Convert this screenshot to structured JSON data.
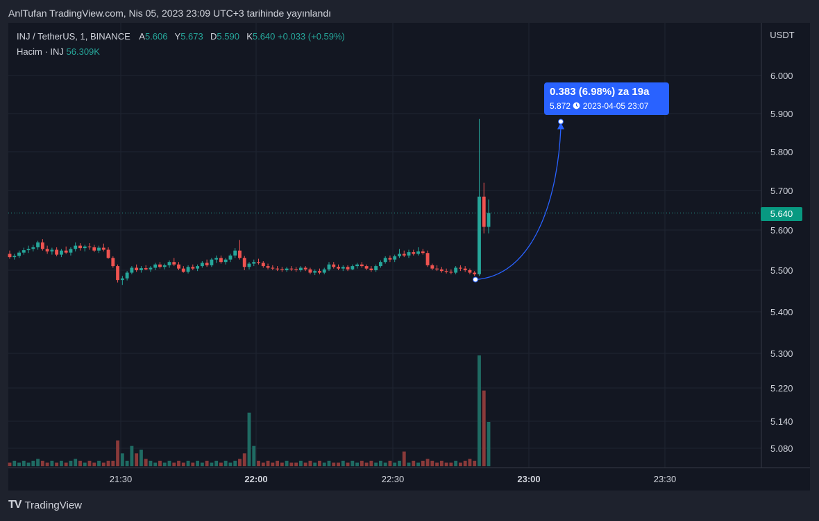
{
  "header": {
    "text": "AnlTufan TradingView.com, Nis 05, 2023 23:09 UTC+3 tarihinde yayınlandı"
  },
  "legend": {
    "symbol": "INJ / TetherUS, 1, BINANCE",
    "open_label": "A",
    "open": "5.606",
    "high_label": "Y",
    "high": "5.673",
    "low_label": "D",
    "low": "5.590",
    "close_label": "K",
    "close": "5.640",
    "change": "+0.033 (+0.59%)",
    "volume_label": "Hacim · INJ",
    "volume": "56.309K"
  },
  "callout": {
    "main": "0.383 (6.98%) za 19a",
    "price": "5.872",
    "datetime": "2023-04-05  23:07",
    "icon": "clock-icon"
  },
  "price_tag": "5.640",
  "brand": {
    "name": "TradingView",
    "logo": "TV"
  },
  "colors": {
    "up": "#26a69a",
    "down": "#ef5350",
    "accent": "#2962ff",
    "background": "#131722"
  },
  "chart_data": {
    "type": "candlestick",
    "currency_label": "USDT",
    "y_ticks": [
      "6.000",
      "5.900",
      "5.800",
      "5.700",
      "5.600",
      "5.500",
      "5.400",
      "5.300",
      "5.220",
      "5.140",
      "5.080"
    ],
    "x_ticks": [
      "21:30",
      "22:00",
      "22:30",
      "23:00",
      "23:30"
    ],
    "last_price": 5.64,
    "measure": {
      "from_price": 5.489,
      "to_price": 5.872,
      "change": 0.383,
      "percent": 6.98
    },
    "candles": [
      {
        "o": 5.54,
        "h": 5.548,
        "l": 5.528,
        "c": 5.532
      },
      {
        "o": 5.532,
        "h": 5.54,
        "l": 5.526,
        "c": 5.535
      },
      {
        "o": 5.535,
        "h": 5.548,
        "l": 5.53,
        "c": 5.543
      },
      {
        "o": 5.543,
        "h": 5.555,
        "l": 5.538,
        "c": 5.549
      },
      {
        "o": 5.549,
        "h": 5.56,
        "l": 5.542,
        "c": 5.552
      },
      {
        "o": 5.552,
        "h": 5.562,
        "l": 5.546,
        "c": 5.556
      },
      {
        "o": 5.556,
        "h": 5.572,
        "l": 5.55,
        "c": 5.568
      },
      {
        "o": 5.568,
        "h": 5.576,
        "l": 5.548,
        "c": 5.552
      },
      {
        "o": 5.552,
        "h": 5.56,
        "l": 5.54,
        "c": 5.546
      },
      {
        "o": 5.546,
        "h": 5.555,
        "l": 5.538,
        "c": 5.55
      },
      {
        "o": 5.55,
        "h": 5.556,
        "l": 5.534,
        "c": 5.538
      },
      {
        "o": 5.538,
        "h": 5.552,
        "l": 5.532,
        "c": 5.548
      },
      {
        "o": 5.548,
        "h": 5.558,
        "l": 5.54,
        "c": 5.543
      },
      {
        "o": 5.543,
        "h": 5.556,
        "l": 5.536,
        "c": 5.552
      },
      {
        "o": 5.552,
        "h": 5.568,
        "l": 5.546,
        "c": 5.56
      },
      {
        "o": 5.56,
        "h": 5.566,
        "l": 5.548,
        "c": 5.554
      },
      {
        "o": 5.554,
        "h": 5.562,
        "l": 5.546,
        "c": 5.558
      },
      {
        "o": 5.558,
        "h": 5.566,
        "l": 5.55,
        "c": 5.556
      },
      {
        "o": 5.556,
        "h": 5.562,
        "l": 5.544,
        "c": 5.548
      },
      {
        "o": 5.548,
        "h": 5.56,
        "l": 5.542,
        "c": 5.555
      },
      {
        "o": 5.555,
        "h": 5.565,
        "l": 5.546,
        "c": 5.55
      },
      {
        "o": 5.55,
        "h": 5.556,
        "l": 5.528,
        "c": 5.53
      },
      {
        "o": 5.53,
        "h": 5.534,
        "l": 5.506,
        "c": 5.51
      },
      {
        "o": 5.51,
        "h": 5.514,
        "l": 5.47,
        "c": 5.476
      },
      {
        "o": 5.476,
        "h": 5.486,
        "l": 5.464,
        "c": 5.48
      },
      {
        "o": 5.48,
        "h": 5.498,
        "l": 5.475,
        "c": 5.494
      },
      {
        "o": 5.494,
        "h": 5.51,
        "l": 5.49,
        "c": 5.506
      },
      {
        "o": 5.506,
        "h": 5.514,
        "l": 5.496,
        "c": 5.5
      },
      {
        "o": 5.5,
        "h": 5.51,
        "l": 5.494,
        "c": 5.505
      },
      {
        "o": 5.505,
        "h": 5.512,
        "l": 5.5,
        "c": 5.502
      },
      {
        "o": 5.502,
        "h": 5.51,
        "l": 5.496,
        "c": 5.506
      },
      {
        "o": 5.506,
        "h": 5.518,
        "l": 5.5,
        "c": 5.514
      },
      {
        "o": 5.514,
        "h": 5.52,
        "l": 5.504,
        "c": 5.508
      },
      {
        "o": 5.508,
        "h": 5.516,
        "l": 5.502,
        "c": 5.512
      },
      {
        "o": 5.512,
        "h": 5.524,
        "l": 5.506,
        "c": 5.52
      },
      {
        "o": 5.52,
        "h": 5.53,
        "l": 5.51,
        "c": 5.514
      },
      {
        "o": 5.514,
        "h": 5.52,
        "l": 5.5,
        "c": 5.504
      },
      {
        "o": 5.504,
        "h": 5.51,
        "l": 5.494,
        "c": 5.496
      },
      {
        "o": 5.496,
        "h": 5.512,
        "l": 5.492,
        "c": 5.508
      },
      {
        "o": 5.508,
        "h": 5.514,
        "l": 5.5,
        "c": 5.504
      },
      {
        "o": 5.504,
        "h": 5.514,
        "l": 5.498,
        "c": 5.51
      },
      {
        "o": 5.51,
        "h": 5.522,
        "l": 5.506,
        "c": 5.518
      },
      {
        "o": 5.518,
        "h": 5.526,
        "l": 5.508,
        "c": 5.512
      },
      {
        "o": 5.512,
        "h": 5.53,
        "l": 5.508,
        "c": 5.526
      },
      {
        "o": 5.526,
        "h": 5.536,
        "l": 5.518,
        "c": 5.53
      },
      {
        "o": 5.53,
        "h": 5.536,
        "l": 5.516,
        "c": 5.52
      },
      {
        "o": 5.52,
        "h": 5.53,
        "l": 5.514,
        "c": 5.526
      },
      {
        "o": 5.526,
        "h": 5.54,
        "l": 5.52,
        "c": 5.536
      },
      {
        "o": 5.536,
        "h": 5.554,
        "l": 5.53,
        "c": 5.548
      },
      {
        "o": 5.548,
        "h": 5.574,
        "l": 5.526,
        "c": 5.53
      },
      {
        "o": 5.53,
        "h": 5.535,
        "l": 5.5,
        "c": 5.508
      },
      {
        "o": 5.508,
        "h": 5.52,
        "l": 5.502,
        "c": 5.516
      },
      {
        "o": 5.516,
        "h": 5.526,
        "l": 5.51,
        "c": 5.52
      },
      {
        "o": 5.52,
        "h": 5.528,
        "l": 5.514,
        "c": 5.518
      },
      {
        "o": 5.518,
        "h": 5.522,
        "l": 5.506,
        "c": 5.51
      },
      {
        "o": 5.51,
        "h": 5.516,
        "l": 5.502,
        "c": 5.506
      },
      {
        "o": 5.506,
        "h": 5.512,
        "l": 5.5,
        "c": 5.504
      },
      {
        "o": 5.504,
        "h": 5.51,
        "l": 5.498,
        "c": 5.502
      },
      {
        "o": 5.502,
        "h": 5.508,
        "l": 5.496,
        "c": 5.5
      },
      {
        "o": 5.5,
        "h": 5.508,
        "l": 5.496,
        "c": 5.504
      },
      {
        "o": 5.504,
        "h": 5.51,
        "l": 5.498,
        "c": 5.502
      },
      {
        "o": 5.502,
        "h": 5.508,
        "l": 5.496,
        "c": 5.5
      },
      {
        "o": 5.5,
        "h": 5.51,
        "l": 5.496,
        "c": 5.506
      },
      {
        "o": 5.506,
        "h": 5.51,
        "l": 5.498,
        "c": 5.502
      },
      {
        "o": 5.502,
        "h": 5.506,
        "l": 5.49,
        "c": 5.494
      },
      {
        "o": 5.494,
        "h": 5.502,
        "l": 5.488,
        "c": 5.498
      },
      {
        "o": 5.498,
        "h": 5.504,
        "l": 5.49,
        "c": 5.494
      },
      {
        "o": 5.494,
        "h": 5.506,
        "l": 5.49,
        "c": 5.502
      },
      {
        "o": 5.502,
        "h": 5.52,
        "l": 5.498,
        "c": 5.514
      },
      {
        "o": 5.514,
        "h": 5.52,
        "l": 5.504,
        "c": 5.508
      },
      {
        "o": 5.508,
        "h": 5.514,
        "l": 5.5,
        "c": 5.504
      },
      {
        "o": 5.504,
        "h": 5.512,
        "l": 5.498,
        "c": 5.508
      },
      {
        "o": 5.508,
        "h": 5.512,
        "l": 5.498,
        "c": 5.502
      },
      {
        "o": 5.502,
        "h": 5.514,
        "l": 5.5,
        "c": 5.51
      },
      {
        "o": 5.51,
        "h": 5.518,
        "l": 5.504,
        "c": 5.514
      },
      {
        "o": 5.514,
        "h": 5.52,
        "l": 5.506,
        "c": 5.51
      },
      {
        "o": 5.51,
        "h": 5.514,
        "l": 5.5,
        "c": 5.504
      },
      {
        "o": 5.504,
        "h": 5.51,
        "l": 5.496,
        "c": 5.5
      },
      {
        "o": 5.5,
        "h": 5.514,
        "l": 5.496,
        "c": 5.51
      },
      {
        "o": 5.51,
        "h": 5.524,
        "l": 5.506,
        "c": 5.52
      },
      {
        "o": 5.52,
        "h": 5.534,
        "l": 5.516,
        "c": 5.53
      },
      {
        "o": 5.53,
        "h": 5.536,
        "l": 5.52,
        "c": 5.526
      },
      {
        "o": 5.526,
        "h": 5.538,
        "l": 5.52,
        "c": 5.534
      },
      {
        "o": 5.534,
        "h": 5.552,
        "l": 5.53,
        "c": 5.54
      },
      {
        "o": 5.54,
        "h": 5.548,
        "l": 5.532,
        "c": 5.536
      },
      {
        "o": 5.536,
        "h": 5.55,
        "l": 5.53,
        "c": 5.544
      },
      {
        "o": 5.544,
        "h": 5.55,
        "l": 5.536,
        "c": 5.54
      },
      {
        "o": 5.54,
        "h": 5.556,
        "l": 5.536,
        "c": 5.546
      },
      {
        "o": 5.546,
        "h": 5.552,
        "l": 5.538,
        "c": 5.542
      },
      {
        "o": 5.542,
        "h": 5.548,
        "l": 5.508,
        "c": 5.512
      },
      {
        "o": 5.512,
        "h": 5.516,
        "l": 5.5,
        "c": 5.504
      },
      {
        "o": 5.504,
        "h": 5.512,
        "l": 5.498,
        "c": 5.502
      },
      {
        "o": 5.502,
        "h": 5.508,
        "l": 5.494,
        "c": 5.498
      },
      {
        "o": 5.498,
        "h": 5.504,
        "l": 5.492,
        "c": 5.496
      },
      {
        "o": 5.496,
        "h": 5.502,
        "l": 5.49,
        "c": 5.494
      },
      {
        "o": 5.494,
        "h": 5.51,
        "l": 5.49,
        "c": 5.506
      },
      {
        "o": 5.506,
        "h": 5.512,
        "l": 5.498,
        "c": 5.504
      },
      {
        "o": 5.504,
        "h": 5.51,
        "l": 5.496,
        "c": 5.5
      },
      {
        "o": 5.5,
        "h": 5.504,
        "l": 5.49,
        "c": 5.494
      },
      {
        "o": 5.494,
        "h": 5.498,
        "l": 5.486,
        "c": 5.49
      },
      {
        "o": 5.49,
        "h": 5.87,
        "l": 5.486,
        "c": 5.68
      },
      {
        "o": 5.68,
        "h": 5.714,
        "l": 5.59,
        "c": 5.606
      },
      {
        "o": 5.606,
        "h": 5.673,
        "l": 5.59,
        "c": 5.64
      }
    ],
    "volumes": [
      2,
      3,
      2,
      3,
      2,
      3,
      4,
      3,
      2,
      3,
      2,
      3,
      2,
      3,
      4,
      3,
      2,
      3,
      2,
      3,
      2,
      3,
      3,
      14,
      7,
      3,
      11,
      7,
      9,
      4,
      3,
      2,
      3,
      2,
      3,
      2,
      3,
      2,
      3,
      2,
      3,
      2,
      3,
      2,
      3,
      2,
      3,
      2,
      3,
      4,
      7,
      29,
      11,
      3,
      2,
      3,
      2,
      3,
      2,
      3,
      2,
      2,
      3,
      2,
      3,
      2,
      3,
      2,
      3,
      2,
      2,
      3,
      2,
      3,
      2,
      3,
      2,
      3,
      2,
      3,
      2,
      3,
      2,
      3,
      8,
      2,
      3,
      2,
      3,
      4,
      3,
      2,
      3,
      2,
      2,
      3,
      2,
      3,
      4,
      3,
      60,
      41,
      24
    ]
  }
}
